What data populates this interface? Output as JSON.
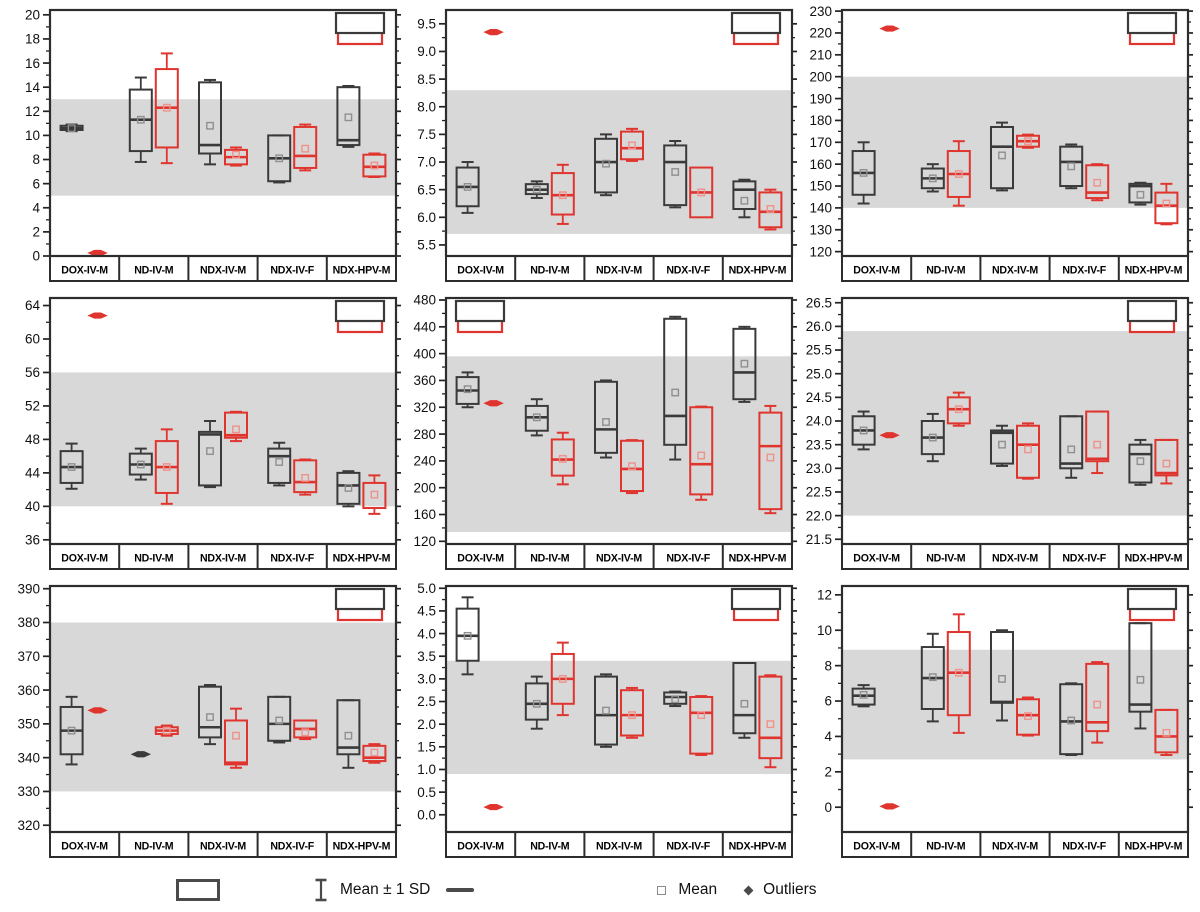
{
  "colors": {
    "series_black": "#3a3a3a",
    "series_red": "#e0352f",
    "mean_black": "#8f8f8f",
    "mean_red": "#f0918b",
    "band": "#d8d8d8",
    "frame": "#2d2d2d",
    "tick_text": "#111111"
  },
  "legend": {
    "mean_sd_label": "Mean ± 1 SD",
    "mean_label": "Mean",
    "outliers_label": "Outliers"
  },
  "categories": [
    "DOX-IV-M",
    "ND-IV-M",
    "NDX-IV-M",
    "NDX-IV-F",
    "NDX-HPV-M"
  ],
  "chart_data": [
    {
      "type": "box",
      "yticks": [
        "0",
        "2",
        "4",
        "6",
        "8",
        "10",
        "12",
        "14",
        "16",
        "18",
        "20"
      ],
      "ylim": [
        0,
        20.4
      ],
      "band": [
        5,
        13
      ],
      "inset": "top-right",
      "groups": [
        {
          "black": {
            "q1": 10.45,
            "q3": 10.8,
            "med": 10.6,
            "mean": 10.6,
            "lo": 10.35,
            "hi": 10.9
          },
          "red": {
            "dash": 0.25
          }
        },
        {
          "black": {
            "q1": 8.7,
            "q3": 13.8,
            "med": 11.3,
            "mean": 11.3,
            "lo": 7.8,
            "hi": 14.8
          },
          "red": {
            "q1": 9.0,
            "q3": 15.5,
            "med": 12.3,
            "mean": 12.3,
            "lo": 7.7,
            "hi": 16.8
          }
        },
        {
          "black": {
            "q1": 8.5,
            "q3": 14.4,
            "med": 9.2,
            "mean": 10.8,
            "lo": 7.6,
            "hi": 14.6
          },
          "red": {
            "q1": 7.6,
            "q3": 8.8,
            "med": 8.2,
            "mean": 8.4,
            "lo": 7.5,
            "hi": 9.0
          }
        },
        {
          "black": {
            "q1": 6.2,
            "q3": 10.0,
            "med": 8.1,
            "mean": 8.1,
            "lo": 6.1,
            "hi": 10.0
          },
          "red": {
            "q1": 7.3,
            "q3": 10.7,
            "med": 8.3,
            "mean": 8.9,
            "lo": 7.1,
            "hi": 10.9
          }
        },
        {
          "black": {
            "q1": 9.2,
            "q3": 14.0,
            "med": 9.6,
            "mean": 11.5,
            "lo": 9.05,
            "hi": 14.1
          },
          "red": {
            "q1": 6.6,
            "q3": 8.4,
            "med": 7.4,
            "mean": 7.5,
            "lo": 6.55,
            "hi": 8.5
          }
        }
      ]
    },
    {
      "type": "box",
      "yticks": [
        "5.5",
        "6.0",
        "6.5",
        "7.0",
        "7.5",
        "8.0",
        "8.5",
        "9.0",
        "9.5"
      ],
      "ylim": [
        5.3,
        9.75
      ],
      "band": [
        5.7,
        8.3
      ],
      "inset": "top-right",
      "groups": [
        {
          "black": {
            "q1": 6.2,
            "q3": 6.9,
            "med": 6.55,
            "mean": 6.55,
            "lo": 6.08,
            "hi": 7.0
          },
          "red": {
            "dash": 9.35
          }
        },
        {
          "black": {
            "q1": 6.42,
            "q3": 6.6,
            "med": 6.5,
            "mean": 6.5,
            "lo": 6.35,
            "hi": 6.65
          },
          "red": {
            "q1": 6.05,
            "q3": 6.8,
            "med": 6.4,
            "mean": 6.4,
            "lo": 5.88,
            "hi": 6.95
          }
        },
        {
          "black": {
            "q1": 6.45,
            "q3": 7.42,
            "med": 7.0,
            "mean": 6.97,
            "lo": 6.4,
            "hi": 7.5
          },
          "red": {
            "q1": 7.05,
            "q3": 7.55,
            "med": 7.25,
            "mean": 7.3,
            "lo": 7.02,
            "hi": 7.6
          }
        },
        {
          "black": {
            "q1": 6.22,
            "q3": 7.3,
            "med": 7.0,
            "mean": 6.82,
            "lo": 6.18,
            "hi": 7.38
          },
          "red": {
            "q1": 6.0,
            "q3": 6.9,
            "med": 6.45,
            "mean": 6.45,
            "lo": null,
            "hi": null
          }
        },
        {
          "black": {
            "q1": 6.15,
            "q3": 6.65,
            "med": 6.5,
            "mean": 6.3,
            "lo": 6.0,
            "hi": 6.68
          },
          "red": {
            "q1": 5.82,
            "q3": 6.45,
            "med": 6.1,
            "mean": 6.15,
            "lo": 5.78,
            "hi": 6.5
          }
        }
      ]
    },
    {
      "type": "box",
      "yticks": [
        "120",
        "130",
        "140",
        "150",
        "160",
        "170",
        "180",
        "190",
        "200",
        "210",
        "220",
        "230"
      ],
      "ylim": [
        118,
        230.5
      ],
      "band": [
        140,
        200
      ],
      "inset": "top-right",
      "groups": [
        {
          "black": {
            "q1": 146,
            "q3": 166,
            "med": 156,
            "mean": 156,
            "lo": 142,
            "hi": 170
          },
          "red": {
            "dash": 222
          }
        },
        {
          "black": {
            "q1": 149,
            "q3": 158,
            "med": 153.5,
            "mean": 153.5,
            "lo": 147.5,
            "hi": 160
          },
          "red": {
            "q1": 145,
            "q3": 166,
            "med": 155.5,
            "mean": 155.5,
            "lo": 141,
            "hi": 170.5
          }
        },
        {
          "black": {
            "q1": 149,
            "q3": 177,
            "med": 168,
            "mean": 164,
            "lo": 148,
            "hi": 179
          },
          "red": {
            "q1": 168,
            "q3": 173,
            "med": 170.5,
            "mean": 170.5,
            "lo": 167.5,
            "hi": 173.5
          }
        },
        {
          "black": {
            "q1": 150,
            "q3": 168,
            "med": 161,
            "mean": 159,
            "lo": 149,
            "hi": 169
          },
          "red": {
            "q1": 144.5,
            "q3": 159.5,
            "med": 147,
            "mean": 151.5,
            "lo": 143.5,
            "hi": 160
          }
        },
        {
          "black": {
            "q1": 142.5,
            "q3": 151,
            "med": 150,
            "mean": 146,
            "lo": 141.5,
            "hi": 151.5
          },
          "red": {
            "q1": 133,
            "q3": 147,
            "med": 141,
            "mean": 142,
            "lo": 132.5,
            "hi": 151
          }
        }
      ]
    },
    {
      "type": "box",
      "yticks": [
        "36",
        "40",
        "44",
        "48",
        "52",
        "56",
        "60",
        "64"
      ],
      "ylim": [
        35.5,
        64.9
      ],
      "band": [
        40,
        56
      ],
      "inset": "top-right",
      "groups": [
        {
          "black": {
            "q1": 42.8,
            "q3": 46.6,
            "med": 44.7,
            "mean": 44.7,
            "lo": 42.1,
            "hi": 47.5
          },
          "red": {
            "dash": 62.8
          }
        },
        {
          "black": {
            "q1": 43.8,
            "q3": 46.3,
            "med": 45.0,
            "mean": 45.0,
            "lo": 43.2,
            "hi": 46.9
          },
          "red": {
            "q1": 41.6,
            "q3": 47.8,
            "med": 44.7,
            "mean": 44.7,
            "lo": 40.3,
            "hi": 49.2
          }
        },
        {
          "black": {
            "q1": 42.5,
            "q3": 48.9,
            "med": 48.6,
            "mean": 46.6,
            "lo": 42.3,
            "hi": 50.2
          },
          "red": {
            "q1": 48.2,
            "q3": 51.2,
            "med": 48.5,
            "mean": 49.2,
            "lo": 47.8,
            "hi": 51.3
          }
        },
        {
          "black": {
            "q1": 42.8,
            "q3": 46.9,
            "med": 46.0,
            "mean": 45.3,
            "lo": 42.5,
            "hi": 47.6
          },
          "red": {
            "q1": 41.7,
            "q3": 45.5,
            "med": 42.9,
            "mean": 43.4,
            "lo": 41.4,
            "hi": 45.6
          }
        },
        {
          "black": {
            "q1": 40.3,
            "q3": 44.0,
            "med": 42.5,
            "mean": 42.2,
            "lo": 40.0,
            "hi": 44.2
          },
          "red": {
            "q1": 39.8,
            "q3": 42.8,
            "med": null,
            "mean": 41.4,
            "lo": 39.1,
            "hi": 43.7
          }
        }
      ]
    },
    {
      "type": "box",
      "yticks": [
        "120",
        "160",
        "200",
        "240",
        "280",
        "320",
        "360",
        "400",
        "440",
        "480"
      ],
      "ylim": [
        116,
        483
      ],
      "band": [
        134,
        396
      ],
      "inset": "top-left",
      "groups": [
        {
          "black": {
            "q1": 325,
            "q3": 365,
            "med": 345,
            "mean": 347,
            "lo": 320,
            "hi": 372
          },
          "red": {
            "dash": 326
          }
        },
        {
          "black": {
            "q1": 285,
            "q3": 322,
            "med": 305,
            "mean": 305,
            "lo": 278,
            "hi": 332
          },
          "red": {
            "q1": 218,
            "q3": 272,
            "med": 242,
            "mean": 243,
            "lo": 205,
            "hi": 282
          }
        },
        {
          "black": {
            "q1": 252,
            "q3": 358,
            "med": 287,
            "mean": 298,
            "lo": 245,
            "hi": 360
          },
          "red": {
            "q1": 195,
            "q3": 270,
            "med": 228,
            "mean": 232,
            "lo": 192,
            "hi": 271
          }
        },
        {
          "black": {
            "q1": 264,
            "q3": 452,
            "med": 307,
            "mean": 342,
            "lo": 242,
            "hi": 455
          },
          "red": {
            "q1": 190,
            "q3": 320,
            "med": 235,
            "mean": 248,
            "lo": 182,
            "hi": 321
          }
        },
        {
          "black": {
            "q1": 332,
            "q3": 437,
            "med": 372,
            "mean": 385,
            "lo": 328,
            "hi": 440
          },
          "red": {
            "q1": 168,
            "q3": 312,
            "med": 262,
            "mean": 245,
            "lo": 162,
            "hi": 322
          }
        }
      ]
    },
    {
      "type": "box",
      "yticks": [
        "21.5",
        "22.0",
        "22.5",
        "23.0",
        "23.5",
        "24.0",
        "24.5",
        "25.0",
        "25.5",
        "26.0",
        "26.5"
      ],
      "ylim": [
        21.4,
        26.6
      ],
      "band": [
        22.0,
        25.9
      ],
      "inset": "top-right",
      "groups": [
        {
          "black": {
            "q1": 23.5,
            "q3": 24.1,
            "med": 23.8,
            "mean": 23.8,
            "lo": 23.4,
            "hi": 24.2
          },
          "red": {
            "dash": 23.7
          }
        },
        {
          "black": {
            "q1": 23.3,
            "q3": 24.0,
            "med": 23.65,
            "mean": 23.65,
            "lo": 23.15,
            "hi": 24.15
          },
          "red": {
            "q1": 23.95,
            "q3": 24.5,
            "med": 24.25,
            "mean": 24.25,
            "lo": 23.9,
            "hi": 24.6
          }
        },
        {
          "black": {
            "q1": 23.1,
            "q3": 23.8,
            "med": 23.75,
            "mean": 23.5,
            "lo": 23.05,
            "hi": 23.9
          },
          "red": {
            "q1": 22.8,
            "q3": 23.9,
            "med": 23.5,
            "mean": 23.4,
            "lo": 22.78,
            "hi": 23.95
          }
        },
        {
          "black": {
            "q1": 23.0,
            "q3": 24.1,
            "med": 23.1,
            "mean": 23.4,
            "lo": 22.8,
            "hi": 24.1
          },
          "red": {
            "q1": 23.15,
            "q3": 24.2,
            "med": 23.2,
            "mean": 23.5,
            "lo": 22.9,
            "hi": 24.2
          }
        },
        {
          "black": {
            "q1": 22.7,
            "q3": 23.5,
            "med": 23.3,
            "mean": 23.15,
            "lo": 22.65,
            "hi": 23.6
          },
          "red": {
            "q1": 22.85,
            "q3": 23.6,
            "med": 22.9,
            "mean": 23.1,
            "lo": 22.68,
            "hi": 23.6
          }
        }
      ]
    },
    {
      "type": "box",
      "yticks": [
        "320",
        "330",
        "340",
        "350",
        "360",
        "370",
        "380",
        "390"
      ],
      "ylim": [
        318,
        390.8
      ],
      "band": [
        330,
        380
      ],
      "inset": "top-right",
      "groups": [
        {
          "black": {
            "q1": 341,
            "q3": 355,
            "med": 348,
            "mean": 348,
            "lo": 338,
            "hi": 358
          },
          "red": {
            "dash": 354
          }
        },
        {
          "black": {
            "dash": 341
          },
          "red": {
            "q1": 347,
            "q3": 349,
            "med": 348,
            "mean": 348,
            "lo": 346.5,
            "hi": 349.5
          }
        },
        {
          "black": {
            "q1": 346,
            "q3": 361,
            "med": 349,
            "mean": 352,
            "lo": 344,
            "hi": 361.5
          },
          "red": {
            "q1": 338,
            "q3": 351,
            "med": 338.5,
            "mean": 346.5,
            "lo": 337,
            "hi": 354.5
          }
        },
        {
          "black": {
            "q1": 345,
            "q3": 358,
            "med": 350,
            "mean": 351,
            "lo": 344.5,
            "hi": 358
          },
          "red": {
            "q1": 346,
            "q3": 351,
            "med": 348.5,
            "mean": 347.5,
            "lo": 345.5,
            "hi": 351
          }
        },
        {
          "black": {
            "q1": 341,
            "q3": 357,
            "med": 343,
            "mean": 346.5,
            "lo": 337,
            "hi": 357
          },
          "red": {
            "q1": 339,
            "q3": 343.5,
            "med": 340,
            "mean": 341.5,
            "lo": 338.5,
            "hi": 344
          }
        }
      ]
    },
    {
      "type": "box",
      "yticks": [
        "0.0",
        "0.5",
        "1.0",
        "1.5",
        "2.0",
        "2.5",
        "3.0",
        "3.5",
        "4.0",
        "4.5",
        "5.0"
      ],
      "ylim": [
        -0.38,
        5.05
      ],
      "band": [
        0.9,
        3.4
      ],
      "inset": "top-right",
      "groups": [
        {
          "black": {
            "q1": 3.4,
            "q3": 4.55,
            "med": 3.95,
            "mean": 3.95,
            "lo": 3.1,
            "hi": 4.8
          },
          "red": {
            "dash": 0.17
          }
        },
        {
          "black": {
            "q1": 2.1,
            "q3": 2.9,
            "med": 2.45,
            "mean": 2.45,
            "lo": 1.9,
            "hi": 3.05
          },
          "red": {
            "q1": 2.45,
            "q3": 3.55,
            "med": 3.0,
            "mean": 3.0,
            "lo": 2.2,
            "hi": 3.8
          }
        },
        {
          "black": {
            "q1": 1.55,
            "q3": 3.05,
            "med": 2.2,
            "mean": 2.3,
            "lo": 1.5,
            "hi": 3.1
          },
          "red": {
            "q1": 1.75,
            "q3": 2.75,
            "med": 2.2,
            "mean": 2.2,
            "lo": 1.7,
            "hi": 2.8
          }
        },
        {
          "black": {
            "q1": 2.45,
            "q3": 2.7,
            "med": 2.6,
            "mean": 2.55,
            "lo": 2.4,
            "hi": 2.72
          },
          "red": {
            "q1": 1.35,
            "q3": 2.6,
            "med": 2.25,
            "mean": 2.2,
            "lo": 1.32,
            "hi": 2.62
          }
        },
        {
          "black": {
            "q1": 1.8,
            "q3": 3.35,
            "med": 2.2,
            "mean": 2.45,
            "lo": 1.7,
            "hi": 3.35
          },
          "red": {
            "q1": 1.25,
            "q3": 3.05,
            "med": 1.7,
            "mean": 2.0,
            "lo": 1.05,
            "hi": 3.08
          }
        }
      ]
    },
    {
      "type": "box",
      "yticks": [
        "0",
        "2",
        "4",
        "6",
        "8",
        "10",
        "12"
      ],
      "ylim": [
        -1.4,
        12.5
      ],
      "band": [
        2.7,
        8.9
      ],
      "inset": "top-right",
      "groups": [
        {
          "black": {
            "q1": 5.8,
            "q3": 6.7,
            "med": 6.3,
            "mean": 6.35,
            "lo": 5.7,
            "hi": 6.9
          },
          "red": {
            "dash": 0.05
          }
        },
        {
          "black": {
            "q1": 5.55,
            "q3": 9.05,
            "med": 7.3,
            "mean": 7.35,
            "lo": 4.85,
            "hi": 9.8
          },
          "red": {
            "q1": 5.2,
            "q3": 9.9,
            "med": 7.6,
            "mean": 7.6,
            "lo": 4.2,
            "hi": 10.9
          }
        },
        {
          "black": {
            "q1": 5.9,
            "q3": 9.9,
            "med": 5.95,
            "mean": 7.25,
            "lo": 4.9,
            "hi": 10.0
          },
          "red": {
            "q1": 4.1,
            "q3": 6.1,
            "med": 5.2,
            "mean": 5.15,
            "lo": 4.05,
            "hi": 6.2
          }
        },
        {
          "black": {
            "q1": 3.0,
            "q3": 6.95,
            "med": 4.85,
            "mean": 4.9,
            "lo": 2.95,
            "hi": 7.0
          },
          "red": {
            "q1": 4.3,
            "q3": 8.1,
            "med": 4.8,
            "mean": 5.8,
            "lo": 3.65,
            "hi": 8.2
          }
        },
        {
          "black": {
            "q1": 5.4,
            "q3": 10.4,
            "med": 5.8,
            "mean": 7.2,
            "lo": 4.45,
            "hi": 10.4
          },
          "red": {
            "q1": 3.1,
            "q3": 5.5,
            "med": 4.0,
            "mean": 4.2,
            "lo": 2.95,
            "hi": 5.5
          }
        }
      ]
    }
  ]
}
